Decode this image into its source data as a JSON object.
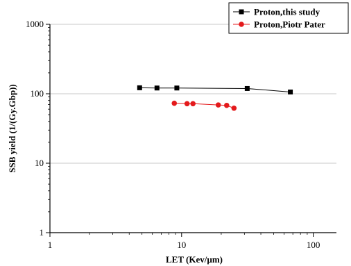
{
  "chart_data": {
    "type": "line",
    "xlabel": "LET (Kev/µm)",
    "ylabel": "SSB yield (1/(Gy.Gbp))",
    "xscale": "log",
    "yscale": "log",
    "xlim": [
      1,
      150
    ],
    "ylim": [
      1,
      1000
    ],
    "xticks": [
      {
        "value": 1,
        "label": "1"
      },
      {
        "value": 10,
        "label": "10"
      },
      {
        "value": 100,
        "label": "100"
      }
    ],
    "yticks": [
      {
        "value": 1,
        "label": "1"
      },
      {
        "value": 10,
        "label": "10"
      },
      {
        "value": 100,
        "label": "100"
      },
      {
        "value": 1000,
        "label": "1000"
      }
    ],
    "grid": "horizontal",
    "legend_position": "top-right",
    "series": [
      {
        "name": "Proton,this study",
        "color": "#000000",
        "marker": "square",
        "x": [
          4.8,
          6.5,
          9.2,
          31.5,
          67
        ],
        "y": [
          122,
          121,
          121,
          119,
          106
        ]
      },
      {
        "name": "Proton,Piotr Pater",
        "color": "#e41a1c",
        "marker": "circle",
        "x": [
          8.8,
          11,
          12.2,
          19,
          22,
          25
        ],
        "y": [
          73,
          72,
          72,
          69,
          68,
          62
        ]
      }
    ]
  }
}
